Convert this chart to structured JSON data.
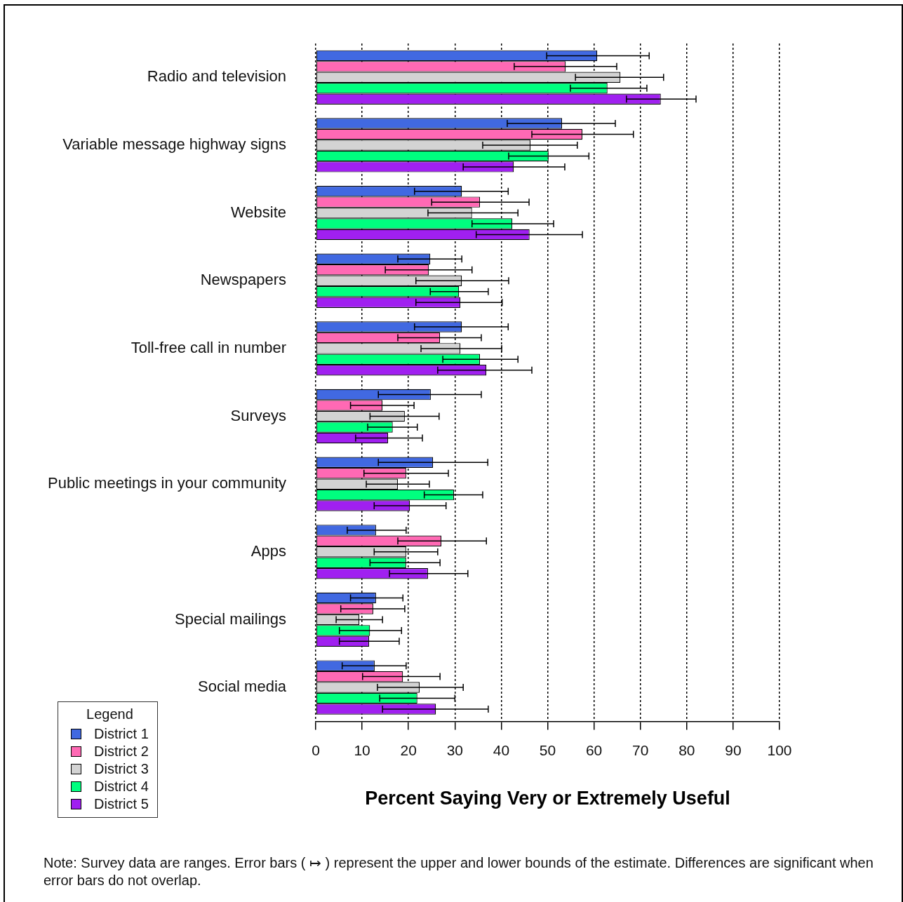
{
  "chart_data": {
    "type": "bar",
    "orientation": "horizontal",
    "xlabel": "Percent Saying Very or Extremely Useful",
    "legend_title": "Legend",
    "legend": "bottom left",
    "grid": "x",
    "categories": [
      "Radio and television",
      "Variable message highway signs",
      "Website",
      "Newspapers",
      "Toll-free call in number",
      "Surveys",
      "Public meetings in your community",
      "Apps",
      "Special mailings",
      "Social media"
    ],
    "xlim": [
      0,
      100
    ],
    "xticks": [
      0,
      10,
      20,
      30,
      40,
      50,
      60,
      70,
      80,
      90,
      100
    ],
    "series": [
      {
        "name": "District 1",
        "color": "#4169e1",
        "values": [
          60.7,
          53.1,
          31.5,
          24.7,
          31.5,
          24.8,
          25.3,
          13,
          13,
          12.7
        ],
        "errors": [
          [
            49.8,
            71.9
          ],
          [
            41.3,
            64.6
          ],
          [
            21.3,
            41.5
          ],
          [
            17.7,
            31.5
          ],
          [
            21.3,
            41.5
          ],
          [
            13.5,
            35.7
          ],
          [
            13.5,
            37.1
          ],
          [
            6.8,
            19.5
          ],
          [
            7.5,
            18.8
          ],
          [
            5.7,
            19.5
          ]
        ]
      },
      {
        "name": "District 2",
        "color": "#ff69b4",
        "values": [
          53.9,
          57.5,
          35.4,
          24.4,
          26.8,
          14.4,
          19.5,
          27.1,
          12.4,
          18.8
        ],
        "errors": [
          [
            42.8,
            64.9
          ],
          [
            46.6,
            68.5
          ],
          [
            25,
            46
          ],
          [
            15,
            33.7
          ],
          [
            17.7,
            35.7
          ],
          [
            7.5,
            21.2
          ],
          [
            10.4,
            28.6
          ],
          [
            17.7,
            36.8
          ],
          [
            5.4,
            19.2
          ],
          [
            10.1,
            26.8
          ]
        ]
      },
      {
        "name": "District 3",
        "color": "#d3d3d3",
        "values": [
          65.7,
          46.3,
          33.7,
          31.5,
          31.2,
          19.2,
          17.7,
          19.5,
          9.4,
          22.4
        ],
        "errors": [
          [
            56,
            75
          ],
          [
            36,
            56.4
          ],
          [
            24.2,
            43.6
          ],
          [
            21.6,
            41.6
          ],
          [
            22.7,
            40.1
          ],
          [
            11.7,
            26.6
          ],
          [
            10.9,
            24.5
          ],
          [
            12.6,
            26.3
          ],
          [
            4.4,
            14.4
          ],
          [
            13.3,
            31.8
          ]
        ]
      },
      {
        "name": "District 4",
        "color": "#00ff7f",
        "values": [
          62.9,
          50.2,
          42.4,
          30.9,
          35.4,
          16.6,
          29.8,
          19.5,
          11.7,
          21.9
        ],
        "errors": [
          [
            54.9,
            71.4
          ],
          [
            41.6,
            58.9
          ],
          [
            33.7,
            51.3
          ],
          [
            24.7,
            37.2
          ],
          [
            27.4,
            43.6
          ],
          [
            11.2,
            21.9
          ],
          [
            23.4,
            36
          ],
          [
            11.7,
            26.8
          ],
          [
            5.1,
            18.5
          ],
          [
            13.8,
            30
          ]
        ]
      },
      {
        "name": "District 5",
        "color": "#a020f0",
        "values": [
          74.4,
          42.7,
          46.1,
          31.2,
          36.8,
          15.6,
          20.3,
          24.2,
          11.5,
          25.9
        ],
        "errors": [
          [
            67,
            82
          ],
          [
            31.8,
            53.7
          ],
          [
            34.6,
            57.5
          ],
          [
            21.6,
            40.2
          ],
          [
            26.3,
            46.6
          ],
          [
            8.6,
            23
          ],
          [
            12.6,
            28.1
          ],
          [
            15.9,
            32.8
          ],
          [
            5.1,
            18
          ],
          [
            14.4,
            37.2
          ]
        ]
      }
    ],
    "annotations": [
      "Note:  Survey data are ranges.  Error bars ( ↦ ) represent the upper and lower bounds of the estimate. Differences are significant when error bars do not overlap."
    ]
  }
}
